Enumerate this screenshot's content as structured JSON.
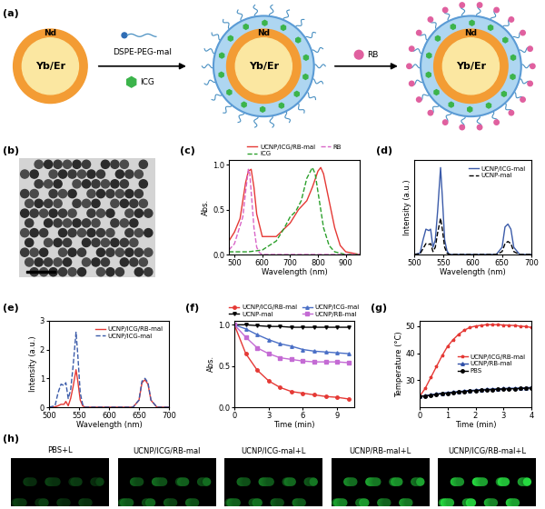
{
  "panel_a": {
    "label": "(a)",
    "shell": "Nd",
    "core": "Yb/Er",
    "reagent": "DSPE-PEG-mal",
    "drug": "ICG",
    "dye": "RB"
  },
  "panel_b": {
    "label": "(b)"
  },
  "chart_data": [
    {
      "label": "(c)",
      "type": "line",
      "xlabel": "Wavelength (nm)",
      "ylabel": "Abs.",
      "xlim": [
        480,
        950
      ],
      "ylim": [
        0.0,
        1.05
      ],
      "xticks": [
        500,
        600,
        700,
        800,
        900
      ],
      "yticks": [
        0.0,
        0.5,
        1.0
      ],
      "legend": "top",
      "series": [
        {
          "name": "UCNP/ICG/RB-mal",
          "color": "#e53935",
          "line_style": "solid",
          "x": [
            480,
            500,
            520,
            540,
            550,
            560,
            570,
            580,
            600,
            650,
            700,
            730,
            760,
            780,
            800,
            810,
            820,
            840,
            860,
            880,
            900,
            950
          ],
          "values": [
            0.15,
            0.25,
            0.4,
            0.8,
            0.93,
            0.95,
            0.75,
            0.45,
            0.2,
            0.2,
            0.35,
            0.5,
            0.6,
            0.75,
            0.93,
            0.97,
            0.9,
            0.6,
            0.3,
            0.1,
            0.03,
            0.0
          ]
        },
        {
          "name": "ICG",
          "color": "#2ca02c",
          "line_style": "dashed",
          "x": [
            480,
            550,
            600,
            650,
            680,
            700,
            720,
            740,
            760,
            780,
            790,
            800,
            820,
            840,
            860,
            900,
            950
          ],
          "values": [
            0.03,
            0.03,
            0.05,
            0.15,
            0.3,
            0.42,
            0.48,
            0.6,
            0.85,
            0.97,
            0.9,
            0.7,
            0.3,
            0.1,
            0.03,
            0.0,
            0.0
          ]
        },
        {
          "name": "RB",
          "color": "#d966c8",
          "line_style": "dashed",
          "x": [
            480,
            500,
            510,
            520,
            530,
            540,
            550,
            555,
            560,
            570,
            580,
            590,
            600,
            650,
            700,
            800,
            950
          ],
          "values": [
            0.05,
            0.12,
            0.22,
            0.32,
            0.42,
            0.7,
            0.95,
            0.9,
            0.7,
            0.3,
            0.08,
            0.02,
            0.0,
            0.0,
            0.0,
            0.0,
            0.0
          ]
        }
      ]
    },
    {
      "label": "(d)",
      "type": "line",
      "xlabel": "Wavelength (nm)",
      "ylabel": "Intensity (a.u.)",
      "xlim": [
        500,
        700
      ],
      "ylim": [
        0,
        130
      ],
      "xticks": [
        500,
        550,
        600,
        650,
        700
      ],
      "tick_labels": "x",
      "legend": "upper right",
      "x": [
        500,
        510,
        515,
        520,
        525,
        528,
        532,
        536,
        540,
        545,
        548,
        552,
        556,
        560,
        600,
        640,
        650,
        655,
        660,
        665,
        670,
        680,
        700
      ],
      "series": [
        {
          "name": "UCNP/ICG-mal",
          "color": "#3b5ba9",
          "line_style": "solid",
          "values": [
            0,
            2,
            20,
            35,
            33,
            35,
            10,
            20,
            60,
            120,
            80,
            20,
            5,
            0,
            0,
            0,
            10,
            38,
            42,
            35,
            10,
            0,
            0
          ]
        },
        {
          "name": "UCNP-mal",
          "color": "#000000",
          "line_style": "dashed",
          "values": [
            0,
            1,
            8,
            15,
            14,
            15,
            4,
            10,
            30,
            50,
            35,
            10,
            2,
            0,
            0,
            0,
            4,
            15,
            18,
            15,
            4,
            0,
            0
          ]
        }
      ]
    },
    {
      "label": "(e)",
      "type": "line",
      "xlabel": "Wavelength (nm)",
      "ylabel": "Intensity (a.u.)",
      "xlim": [
        500,
        700
      ],
      "ylim": [
        0,
        3
      ],
      "xticks": [
        500,
        550,
        600,
        650,
        700
      ],
      "yticks": [
        0,
        1,
        2,
        3
      ],
      "legend": "upper right",
      "x": [
        500,
        510,
        515,
        520,
        525,
        528,
        532,
        536,
        540,
        545,
        548,
        552,
        556,
        560,
        600,
        640,
        650,
        655,
        660,
        665,
        670,
        680,
        700
      ],
      "series": [
        {
          "name": "UCNP/ICG/RB-mal",
          "color": "#e53935",
          "line_style": "solid",
          "values": [
            0,
            0.01,
            0.05,
            0.1,
            0.1,
            0.2,
            0.05,
            0.3,
            0.7,
            1.3,
            0.9,
            0.25,
            0.05,
            0,
            0,
            0,
            0.24,
            0.85,
            0.95,
            0.8,
            0.24,
            0,
            0
          ]
        },
        {
          "name": "UCNP/ICG-mal",
          "color": "#3b5ba9",
          "line_style": "dashed",
          "values": [
            0,
            0.05,
            0.5,
            0.8,
            0.75,
            0.85,
            0.3,
            0.6,
            1.4,
            2.6,
            1.8,
            0.5,
            0.1,
            0,
            0,
            0,
            0.25,
            0.9,
            1.0,
            0.85,
            0.25,
            0,
            0
          ]
        }
      ]
    },
    {
      "label": "(f)",
      "type": "line",
      "xlabel": "Time (min)",
      "ylabel": "Abs.",
      "xlim": [
        0,
        10.5
      ],
      "ylim": [
        0.0,
        1.05
      ],
      "xticks": [
        0,
        3,
        6,
        9
      ],
      "yticks": [
        0.0,
        0.5,
        1.0
      ],
      "legend": "top",
      "x": [
        0,
        1,
        2,
        3,
        4,
        5,
        6,
        7,
        8,
        9,
        10
      ],
      "series": [
        {
          "name": "UCNP/ICG/RB-mal",
          "color": "#e53935",
          "line_style": "solid",
          "marker": "circle",
          "values": [
            1.0,
            0.65,
            0.45,
            0.32,
            0.24,
            0.19,
            0.17,
            0.15,
            0.13,
            0.12,
            0.1
          ]
        },
        {
          "name": "UCNP-mal",
          "color": "#000000",
          "line_style": "solid",
          "marker": "triangle_down",
          "values": [
            1.0,
            1.0,
            0.99,
            0.98,
            0.98,
            0.97,
            0.97,
            0.97,
            0.97,
            0.97,
            0.97
          ]
        },
        {
          "name": "UCNP/ICG-mal",
          "color": "#4a6fc6",
          "line_style": "solid",
          "marker": "triangle_up",
          "values": [
            1.0,
            0.95,
            0.88,
            0.82,
            0.77,
            0.74,
            0.7,
            0.68,
            0.67,
            0.66,
            0.65
          ]
        },
        {
          "name": "UCNP/RB-mal",
          "color": "#c46bd4",
          "line_style": "solid",
          "marker": "square",
          "values": [
            1.0,
            0.85,
            0.72,
            0.65,
            0.6,
            0.58,
            0.56,
            0.55,
            0.55,
            0.55,
            0.54
          ]
        }
      ]
    },
    {
      "label": "(g)",
      "type": "line",
      "xlabel": "Time (min)",
      "ylabel": "Temperature (°C)",
      "xlim": [
        0,
        4
      ],
      "ylim": [
        20,
        52
      ],
      "xticks": [
        0,
        1,
        2,
        3,
        4
      ],
      "yticks": [
        30,
        40,
        50
      ],
      "legend": "center right",
      "x": [
        0,
        0.2,
        0.4,
        0.6,
        0.8,
        1.0,
        1.2,
        1.4,
        1.6,
        1.8,
        2.0,
        2.2,
        2.4,
        2.6,
        2.8,
        3.0,
        3.2,
        3.4,
        3.6,
        3.8,
        4.0
      ],
      "series": [
        {
          "name": "UCNP/ICG/RB-mal",
          "color": "#e53935",
          "line_style": "solid",
          "marker": "star",
          "values": [
            24,
            27,
            31,
            35,
            39,
            42.5,
            45,
            47,
            48.5,
            49.5,
            50,
            50.3,
            50.5,
            50.5,
            50.5,
            50.4,
            50.3,
            50.2,
            50,
            49.8,
            49.5
          ]
        },
        {
          "name": "UCNP/RB-mal",
          "color": "#2f4fa8",
          "line_style": "solid",
          "marker": "triangle_up",
          "values": [
            24,
            24.3,
            24.6,
            24.9,
            25.2,
            25.4,
            25.6,
            25.8,
            26,
            26.2,
            26.3,
            26.5,
            26.6,
            26.7,
            26.8,
            26.9,
            27,
            27,
            27.1,
            27.2,
            27.3
          ]
        },
        {
          "name": "PBS",
          "color": "#000000",
          "line_style": "solid",
          "marker": "circle",
          "values": [
            24,
            24.2,
            24.4,
            24.7,
            25,
            25.2,
            25.4,
            25.6,
            25.8,
            26,
            26.1,
            26.3,
            26.4,
            26.5,
            26.6,
            26.7,
            26.8,
            26.8,
            26.9,
            27,
            27.1
          ]
        }
      ]
    }
  ],
  "panel_h": {
    "label": "(h)",
    "captions": [
      "PBS+L",
      "UCNP/ICG/RB-mal",
      "UCNP/ICG-mal+L",
      "UCNP/RB-mal+L",
      "UCNP/ICG/RB-mal+L"
    ]
  }
}
